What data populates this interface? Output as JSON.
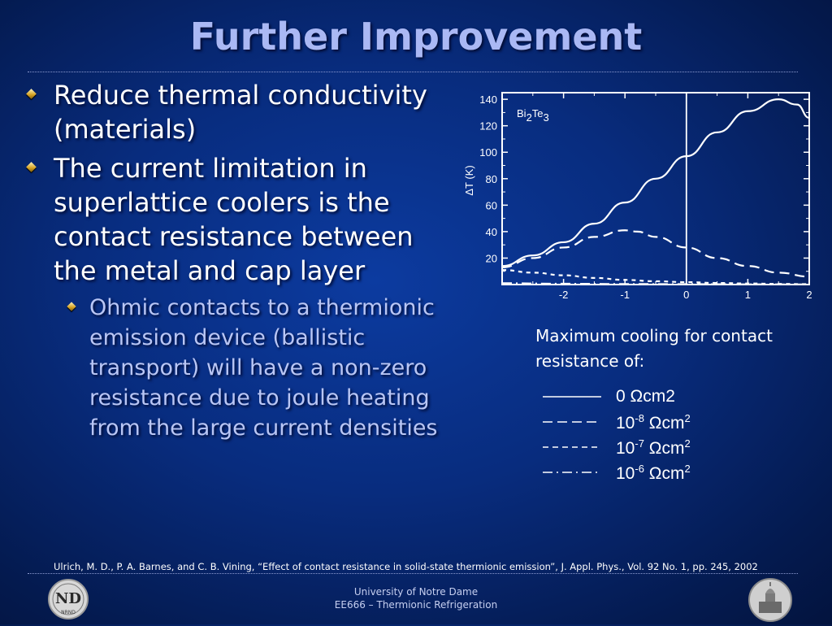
{
  "slide": {
    "title": "Further Improvement",
    "bullets": [
      "Reduce thermal conductivity (materials)",
      "The current limitation in superlattice coolers is the contact resistance between the metal and cap layer"
    ],
    "sub_bullets": [
      "Ohmic contacts to a thermionic emission device (ballistic transport) will have a non-zero resistance due to joule heating from the large current densities"
    ],
    "caption": "Maximum cooling for contact resistance of:",
    "legend": [
      {
        "style": "solid",
        "value": "0 ",
        "unit": "Ωcm2",
        "exp": ""
      },
      {
        "style": "dashed",
        "value": "10",
        "exp": "-8",
        "unit": " Ωcm",
        "unit_exp": "2"
      },
      {
        "style": "short-dashed",
        "value": "10",
        "exp": "-7",
        "unit": " Ωcm",
        "unit_exp": "2"
      },
      {
        "style": "dash-dot",
        "value": "10",
        "exp": "-6",
        "unit": " Ωcm",
        "unit_exp": "2"
      }
    ],
    "citation": "Ulrich, M. D., P. A. Barnes, and C. B. Vining, “Effect of contact resistance in solid-state thermionic emission”, J. Appl. Phys., Vol. 92 No. 1, pp. 245, 2002",
    "footer": {
      "line1": "University of Notre Dame",
      "line2": "EE666 – Thermionic Refrigeration"
    },
    "logo_left": {
      "icon": "nd-monogram-seal",
      "text": "NRND"
    },
    "logo_right": {
      "icon": "golden-dome-building-seal"
    }
  },
  "chart_data": {
    "type": "line",
    "xlim": [
      -3,
      2
    ],
    "ylim": [
      0,
      145
    ],
    "yticks": [
      20,
      40,
      60,
      80,
      100,
      120,
      140
    ],
    "xticks": [
      -2,
      -1,
      0,
      1,
      2
    ],
    "ylabel": "ΔT (K)",
    "xlabel": "",
    "annotation": {
      "base": "Bi",
      "sub1": "2",
      "mid": "Te",
      "sub2": "3"
    },
    "vline_x": 0,
    "grid": false,
    "series": [
      {
        "style": "solid",
        "points": [
          [
            -3,
            14
          ],
          [
            -2.5,
            22
          ],
          [
            -2,
            32
          ],
          [
            -1.5,
            46
          ],
          [
            -1,
            62
          ],
          [
            -0.5,
            80
          ],
          [
            0,
            97
          ],
          [
            0.5,
            115
          ],
          [
            1,
            131
          ],
          [
            1.5,
            140
          ],
          [
            1.8,
            136
          ],
          [
            2,
            126
          ]
        ]
      },
      {
        "style": "dashed",
        "points": [
          [
            -3,
            13
          ],
          [
            -2.5,
            20
          ],
          [
            -2,
            28
          ],
          [
            -1.5,
            36
          ],
          [
            -1,
            41
          ],
          [
            -0.8,
            40
          ],
          [
            -0.5,
            36
          ],
          [
            0,
            28
          ],
          [
            0.5,
            20
          ],
          [
            1,
            14
          ],
          [
            1.5,
            9
          ],
          [
            2,
            6
          ]
        ]
      },
      {
        "style": "short-dashed",
        "points": [
          [
            -3,
            11
          ],
          [
            -2.5,
            9
          ],
          [
            -2,
            7
          ],
          [
            -1.5,
            5
          ],
          [
            -1,
            3.5
          ],
          [
            -0.5,
            2.5
          ],
          [
            0,
            1.8
          ],
          [
            0.5,
            1.2
          ],
          [
            1,
            0.8
          ],
          [
            1.5,
            0.5
          ],
          [
            2,
            0.3
          ]
        ]
      },
      {
        "style": "dash-dot",
        "points": [
          [
            -3,
            1
          ],
          [
            -2,
            0.6
          ],
          [
            -1,
            0.4
          ],
          [
            0,
            0.3
          ],
          [
            1,
            0.2
          ],
          [
            2,
            0.1
          ]
        ]
      }
    ]
  }
}
